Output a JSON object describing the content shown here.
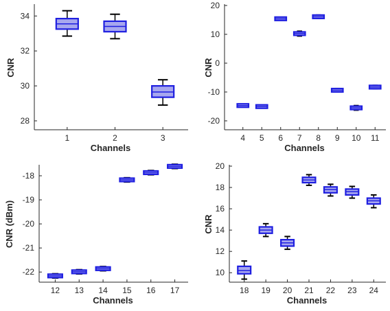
{
  "chart_data": [
    {
      "type": "box",
      "xlabel": "Channels",
      "ylabel": "CNR",
      "ylim": [
        28,
        34.6
      ],
      "yticks": [
        28,
        30,
        32,
        34
      ],
      "categories": [
        "1",
        "2",
        "3"
      ],
      "boxes": [
        {
          "category": "1",
          "min": 32.85,
          "q1": 33.25,
          "median": 33.55,
          "q3": 33.85,
          "max": 34.3
        },
        {
          "category": "2",
          "min": 32.7,
          "q1": 33.1,
          "median": 33.4,
          "q3": 33.7,
          "max": 34.1
        },
        {
          "category": "3",
          "min": 28.9,
          "q1": 29.35,
          "median": 29.65,
          "q3": 30.0,
          "max": 30.35
        }
      ],
      "box_color": "#1f1fe0",
      "box_fill": "#a7a7ee"
    },
    {
      "type": "box",
      "xlabel": "Channels",
      "ylabel": "CNR",
      "ylim": [
        -20,
        20
      ],
      "yticks": [
        -20,
        -10,
        0,
        10,
        20
      ],
      "categories": [
        "4",
        "5",
        "6",
        "7",
        "8",
        "9",
        "10",
        "11"
      ],
      "boxes": [
        {
          "category": "4",
          "min": -14.9,
          "q1": -14.8,
          "median": -14.7,
          "q3": -14.6,
          "max": -14.5
        },
        {
          "category": "5",
          "min": -15.3,
          "q1": -15.15,
          "median": -15.05,
          "q3": -14.95,
          "max": -14.8
        },
        {
          "category": "6",
          "min": 14.9,
          "q1": 15.1,
          "median": 15.4,
          "q3": 15.7,
          "max": 15.9
        },
        {
          "category": "7",
          "min": 9.4,
          "q1": 9.8,
          "median": 10.3,
          "q3": 10.7,
          "max": 11.1
        },
        {
          "category": "8",
          "min": 15.5,
          "q1": 15.8,
          "median": 16.1,
          "q3": 16.4,
          "max": 16.7
        },
        {
          "category": "9",
          "min": -10.0,
          "q1": -9.7,
          "median": -9.4,
          "q3": -9.1,
          "max": -8.8
        },
        {
          "category": "10",
          "min": -16.3,
          "q1": -15.9,
          "median": -15.5,
          "q3": -15.1,
          "max": -14.7
        },
        {
          "category": "11",
          "min": -8.9,
          "q1": -8.6,
          "median": -8.3,
          "q3": -8.0,
          "max": -7.7
        }
      ],
      "box_color": "#1f1fe0",
      "box_fill": "#a7a7ee"
    },
    {
      "type": "box",
      "xlabel": "Channels",
      "ylabel": "CNR (dBm)",
      "ylim": [
        -22.25,
        -17.6
      ],
      "yticks": [
        -22,
        -21,
        -20,
        -19,
        -18
      ],
      "categories": [
        "12",
        "13",
        "14",
        "15",
        "16",
        "17"
      ],
      "boxes": [
        {
          "category": "12",
          "min": -22.25,
          "q1": -22.2,
          "median": -22.16,
          "q3": -22.12,
          "max": -22.07
        },
        {
          "category": "13",
          "min": -22.08,
          "q1": -22.03,
          "median": -21.99,
          "q3": -21.95,
          "max": -21.9
        },
        {
          "category": "14",
          "min": -21.95,
          "q1": -21.9,
          "median": -21.86,
          "q3": -21.82,
          "max": -21.77
        },
        {
          "category": "15",
          "min": -18.26,
          "q1": -18.21,
          "median": -18.17,
          "q3": -18.13,
          "max": -18.08
        },
        {
          "category": "16",
          "min": -17.96,
          "q1": -17.91,
          "median": -17.87,
          "q3": -17.83,
          "max": -17.78
        },
        {
          "category": "17",
          "min": -17.7,
          "q1": -17.65,
          "median": -17.61,
          "q3": -17.57,
          "max": -17.52
        }
      ],
      "box_color": "#1f1fe0",
      "box_fill": "#a7a7ee"
    },
    {
      "type": "box",
      "xlabel": "Channels",
      "ylabel": "CNR",
      "ylim": [
        9.5,
        20
      ],
      "yticks": [
        10,
        12,
        14,
        16,
        18,
        20
      ],
      "categories": [
        "18",
        "19",
        "20",
        "21",
        "22",
        "23",
        "24"
      ],
      "boxes": [
        {
          "category": "18",
          "min": 9.4,
          "q1": 9.9,
          "median": 10.2,
          "q3": 10.6,
          "max": 11.1
        },
        {
          "category": "19",
          "min": 13.4,
          "q1": 13.7,
          "median": 14.0,
          "q3": 14.3,
          "max": 14.6
        },
        {
          "category": "20",
          "min": 12.2,
          "q1": 12.5,
          "median": 12.8,
          "q3": 13.1,
          "max": 13.4
        },
        {
          "category": "21",
          "min": 18.2,
          "q1": 18.45,
          "median": 18.7,
          "q3": 18.95,
          "max": 19.2
        },
        {
          "category": "22",
          "min": 17.2,
          "q1": 17.5,
          "median": 17.8,
          "q3": 18.05,
          "max": 18.3
        },
        {
          "category": "23",
          "min": 17.0,
          "q1": 17.3,
          "median": 17.6,
          "q3": 17.85,
          "max": 18.1
        },
        {
          "category": "24",
          "min": 16.1,
          "q1": 16.45,
          "median": 16.75,
          "q3": 17.0,
          "max": 17.3
        }
      ],
      "box_color": "#1f1fe0",
      "box_fill": "#a7a7ee"
    }
  ]
}
